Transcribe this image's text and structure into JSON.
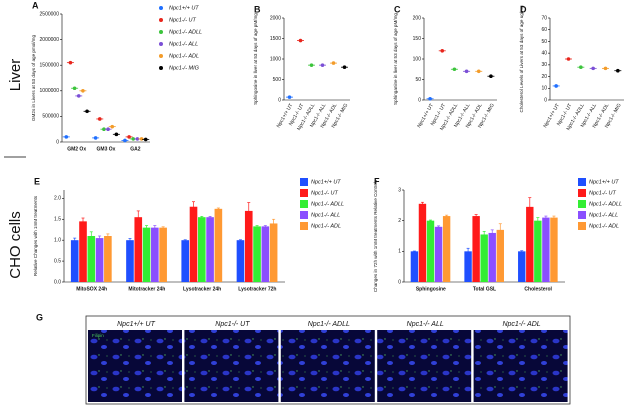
{
  "section_labels": [
    "Liver",
    "CHO cells"
  ],
  "chart_data": [
    {
      "type": "dot",
      "panel": "A",
      "ylabel": "GM2s in Livers at 53 days of age pmol/mg",
      "categories": [
        "GM2 Ox",
        "GM3 Ox",
        "GA2"
      ],
      "series": [
        {
          "name": "Npc1+/+ UT",
          "color": "#1f6fff",
          "values": [
            100000,
            80000,
            30000
          ]
        },
        {
          "name": "Npc1-/- UT",
          "color": "#e8251c",
          "values": [
            1550000,
            450000,
            100000
          ]
        },
        {
          "name": "Npc1-/- ADLL",
          "color": "#3cc43c",
          "values": [
            1050000,
            250000,
            60000
          ]
        },
        {
          "name": "Npc1-/- ALL",
          "color": "#7b4fd6",
          "values": [
            900000,
            250000,
            60000
          ]
        },
        {
          "name": "Npc1-/- ADL",
          "color": "#f39c2a",
          "values": [
            1000000,
            300000,
            60000
          ]
        },
        {
          "name": "Npc1-/- MIG",
          "color": "#000000",
          "values": [
            600000,
            150000,
            50000
          ]
        }
      ],
      "ylim": [
        0,
        2500000
      ],
      "yticks": [
        0,
        500000,
        1000000,
        1500000,
        2000000,
        2500000
      ],
      "legend": "right"
    },
    {
      "type": "dot",
      "panel": "B",
      "ylabel": "Sphingosine in liver at 53 days of age pM/mg",
      "categories": [
        "Npc1+/+ UT",
        "Npc1-/- UT",
        "Npc1-/- ADLL",
        "Npc1-/- ALL",
        "Npc1-/- ADL",
        "Npc1-/- MIG"
      ],
      "values": [
        70,
        1450,
        850,
        850,
        900,
        800
      ],
      "colors": [
        "#1f6fff",
        "#e8251c",
        "#3cc43c",
        "#7b4fd6",
        "#f39c2a",
        "#000000"
      ],
      "ylim": [
        0,
        2000
      ],
      "yticks": [
        0,
        500,
        1000,
        1500,
        2000
      ]
    },
    {
      "type": "dot",
      "panel": "C",
      "ylabel": "Sphinganine in liver at 53 days of age pM/mg",
      "categories": [
        "Npc1+/+ UT",
        "Npc1-/- UT",
        "Npc1-/- ADLL",
        "Npc1-/- ALL",
        "Npc1-/- ADL",
        "Npc1-/- MIG"
      ],
      "values": [
        3,
        120,
        75,
        70,
        70,
        58
      ],
      "colors": [
        "#1f6fff",
        "#e8251c",
        "#3cc43c",
        "#7b4fd6",
        "#f39c2a",
        "#000000"
      ],
      "ylim": [
        0,
        200
      ],
      "yticks": [
        0,
        50,
        100,
        150,
        200
      ]
    },
    {
      "type": "dot",
      "panel": "D",
      "ylabel": "Cholesterol Levels of Livers at 53 days of age ug/mg",
      "categories": [
        "Npc1+/+ UT",
        "Npc1-/- UT",
        "Npc1-/- ADLL",
        "Npc1-/- ALL",
        "Npc1-/- ADL",
        "Npc1-/- MIG"
      ],
      "values": [
        12,
        35,
        28,
        27,
        27,
        25
      ],
      "colors": [
        "#1f6fff",
        "#e8251c",
        "#3cc43c",
        "#7b4fd6",
        "#f39c2a",
        "#000000"
      ],
      "ylim": [
        0,
        70
      ],
      "yticks": [
        0,
        10,
        20,
        30,
        40,
        50,
        60,
        70
      ]
    },
    {
      "type": "bar",
      "panel": "E",
      "ylabel": "Relative Changes with 1mM treatments",
      "categories": [
        "MitoSOX 24h",
        "Mitotracker 24h",
        "Lysotracker 24h",
        "Lysotracker 72h"
      ],
      "series": [
        {
          "name": "Npc1+/+ UT",
          "color": "#1f4fff",
          "values": [
            1.0,
            1.0,
            1.0,
            1.0
          ],
          "errors": [
            0.05,
            0.04,
            0.01,
            0.01
          ]
        },
        {
          "name": "Npc1-/- UT",
          "color": "#ff1a1a",
          "values": [
            1.45,
            1.55,
            1.8,
            1.7
          ],
          "errors": [
            0.08,
            0.15,
            0.12,
            0.2
          ]
        },
        {
          "name": "Npc1-/- ADLL",
          "color": "#33ee33",
          "values": [
            1.1,
            1.3,
            1.55,
            1.33
          ],
          "errors": [
            0.1,
            0.05,
            0.02,
            0.02
          ]
        },
        {
          "name": "Npc1-/- ALL",
          "color": "#8a4fff",
          "values": [
            1.05,
            1.3,
            1.55,
            1.33
          ],
          "errors": [
            0.05,
            0.05,
            0.02,
            0.02
          ]
        },
        {
          "name": "Npc1-/- ADL",
          "color": "#ff9933",
          "values": [
            1.1,
            1.3,
            1.75,
            1.4
          ],
          "errors": [
            0.05,
            0.02,
            0.02,
            0.1
          ]
        }
      ],
      "ylim": [
        0,
        2.2
      ],
      "yticks": [
        {
          "value": 0,
          "label": "0.0"
        },
        {
          "value": 0.5,
          "label": "0.5"
        },
        {
          "value": 1,
          "label": "1.0"
        },
        {
          "value": 1.5,
          "label": "1.5"
        },
        {
          "value": 2,
          "label": "2.0"
        }
      ],
      "legend": "right"
    },
    {
      "type": "bar",
      "panel": "F",
      "ylabel": "Changes in 72h with 1mM treatments Relative Controls",
      "categories": [
        "Sphingosine",
        "Total GSL",
        "Cholesterol"
      ],
      "series": [
        {
          "name": "Npc1+/+ UT",
          "color": "#1f4fff",
          "values": [
            1.0,
            1.0,
            1.0
          ],
          "errors": [
            0.01,
            0.1,
            0.02
          ]
        },
        {
          "name": "Npc1-/- UT",
          "color": "#ff1a1a",
          "values": [
            2.55,
            2.15,
            2.45
          ],
          "errors": [
            0.05,
            0.05,
            0.3
          ]
        },
        {
          "name": "Npc1-/- ADLL",
          "color": "#33ee33",
          "values": [
            2.0,
            1.55,
            2.0
          ],
          "errors": [
            0.02,
            0.1,
            0.1
          ]
        },
        {
          "name": "Npc1-/- ALL",
          "color": "#8a4fff",
          "values": [
            1.8,
            1.6,
            2.1
          ],
          "errors": [
            0.03,
            0.1,
            0.05
          ]
        },
        {
          "name": "Npc1-/- ADL",
          "color": "#ff9933",
          "values": [
            2.15,
            1.7,
            2.1
          ],
          "errors": [
            0.03,
            0.2,
            0.05
          ]
        }
      ],
      "ylim": [
        0,
        3
      ],
      "yticks": [
        0,
        1,
        2,
        3
      ],
      "legend": "right"
    }
  ],
  "microscopy": {
    "panel": "G",
    "stain": "Filipin",
    "labels": [
      "Npc1+/+ UT",
      "Npc1-/- UT",
      "Npc1-/- ADLL",
      "Npc1-/- ALL",
      "Npc1-/- ADL"
    ]
  }
}
